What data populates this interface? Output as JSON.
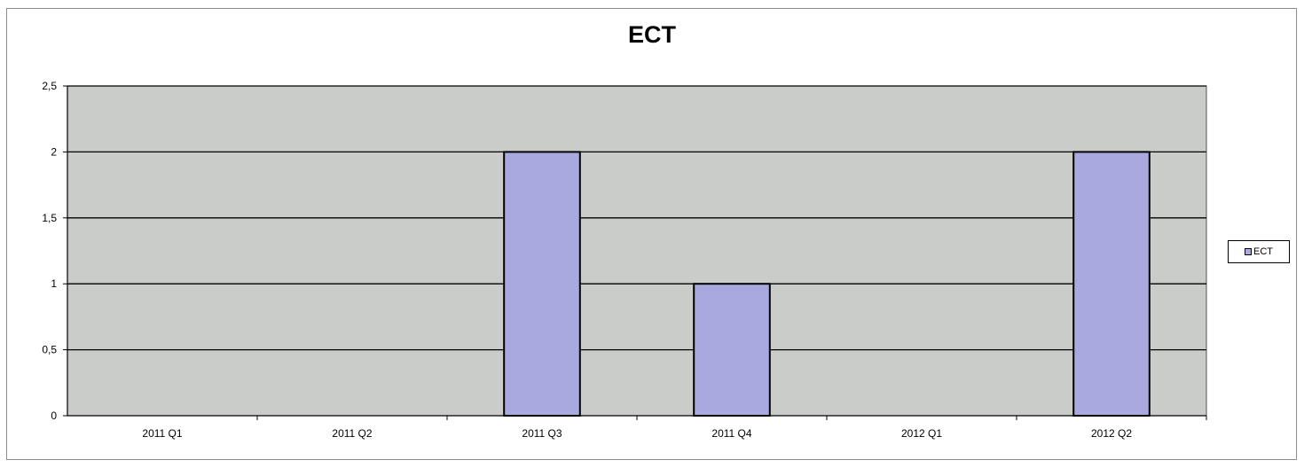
{
  "chart_data": {
    "type": "bar",
    "title": "ECT",
    "categories": [
      "2011 Q1",
      "2011 Q2",
      "2011 Q3",
      "2011 Q4",
      "2012 Q1",
      "2012 Q2"
    ],
    "series": [
      {
        "name": "ECT",
        "values": [
          0,
          0,
          2,
          1,
          0,
          2
        ]
      }
    ],
    "ylim": [
      0,
      2.5
    ],
    "yticks": [
      "0",
      "0,5",
      "1",
      "1,5",
      "2",
      "2,5"
    ],
    "ytick_values": [
      0,
      0.5,
      1,
      1.5,
      2,
      2.5
    ],
    "grid": true,
    "legend_position": "right",
    "colors": {
      "bar": "#a7a9df",
      "plot_background": "#c9ccc8",
      "gridline": "#000000"
    }
  }
}
